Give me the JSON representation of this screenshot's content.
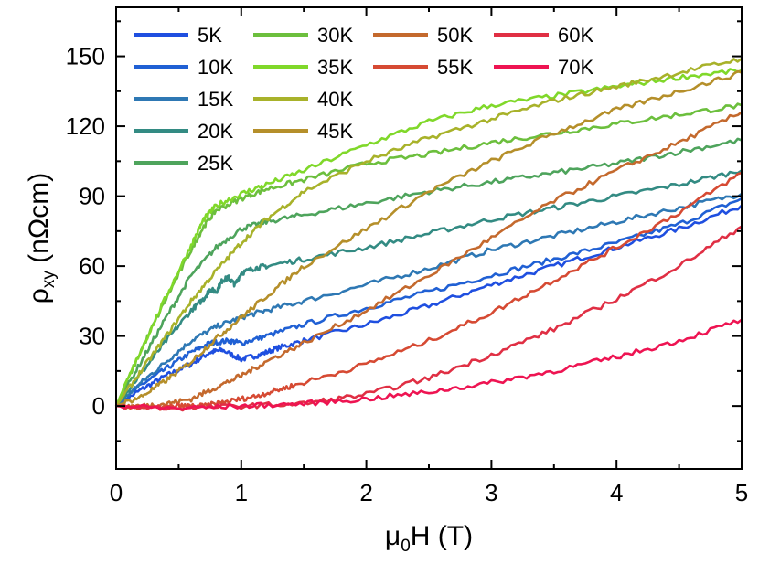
{
  "chart_data": {
    "type": "line",
    "title": "",
    "xlabel": {
      "main": "μ",
      "sub": "0",
      "rest": "H (T)"
    },
    "ylabel": {
      "main": "ρ",
      "sub": "xy",
      "rest": " (nΩcm)"
    },
    "xlim": [
      0,
      5
    ],
    "ylim": [
      -27,
      171
    ],
    "xticks": [
      0,
      1,
      2,
      3,
      4,
      5
    ],
    "yticks": [
      0,
      30,
      60,
      90,
      120,
      150
    ],
    "xtick_labels": [
      "0",
      "1",
      "2",
      "3",
      "4",
      "5"
    ],
    "ytick_labels": [
      "0",
      "30",
      "60",
      "90",
      "120",
      "150"
    ],
    "grid": false,
    "legend_position": "top-left",
    "legend_columns": 4,
    "series": [
      {
        "name": "5K",
        "color": "#1f4fe0",
        "x": [
          0,
          0.2,
          0.4,
          0.6,
          0.75,
          0.85,
          1.0,
          1.15,
          1.3,
          1.5,
          2.0,
          2.5,
          3.0,
          3.5,
          4.0,
          4.5,
          5.0
        ],
        "y": [
          0,
          7,
          13,
          18,
          23,
          24,
          20,
          22,
          25,
          28,
          35,
          43,
          52,
          60,
          68,
          76,
          86
        ]
      },
      {
        "name": "10K",
        "color": "#2060d4",
        "x": [
          0,
          0.2,
          0.4,
          0.6,
          0.75,
          0.9,
          1.0,
          1.2,
          1.5,
          2.0,
          2.5,
          3.0,
          3.5,
          4.0,
          4.5,
          5.0
        ],
        "y": [
          0,
          9,
          16,
          23,
          27,
          28,
          27,
          30,
          35,
          42,
          49,
          56,
          63,
          70,
          78,
          89
        ]
      },
      {
        "name": "15K",
        "color": "#2e78b4",
        "x": [
          0,
          0.2,
          0.4,
          0.6,
          0.8,
          1.0,
          1.2,
          1.5,
          2.0,
          2.5,
          3.0,
          3.5,
          4.0,
          4.5,
          5.0
        ],
        "y": [
          0,
          10,
          19,
          28,
          34,
          38,
          41,
          45,
          52,
          59,
          67,
          73,
          79,
          85,
          91
        ]
      },
      {
        "name": "20K",
        "color": "#338b83",
        "x": [
          0,
          0.2,
          0.4,
          0.6,
          0.7,
          0.75,
          0.8,
          0.85,
          0.9,
          0.95,
          1.0,
          1.1,
          1.2,
          1.5,
          2.0,
          2.5,
          3.0,
          3.5,
          4.0,
          4.5,
          5.0
        ],
        "y": [
          0,
          14,
          28,
          41,
          46,
          50,
          49,
          54,
          55,
          52,
          57,
          59,
          60,
          63,
          68,
          74,
          80,
          85,
          90,
          95,
          101
        ]
      },
      {
        "name": "25K",
        "color": "#4ea45c",
        "x": [
          0,
          0.2,
          0.4,
          0.6,
          0.8,
          1.0,
          1.2,
          1.5,
          2.0,
          2.5,
          3.0,
          3.5,
          4.0,
          4.5,
          5.0
        ],
        "y": [
          0,
          19,
          38,
          56,
          68,
          76,
          79,
          82,
          87,
          92,
          96,
          100,
          104,
          109,
          114
        ]
      },
      {
        "name": "30K",
        "color": "#6cbf3d",
        "x": [
          0,
          0.2,
          0.4,
          0.6,
          0.7,
          0.8,
          1.0,
          1.2,
          1.5,
          2.0,
          2.5,
          3.0,
          3.5,
          4.0,
          4.5,
          5.0
        ],
        "y": [
          0,
          24,
          46,
          67,
          77,
          84,
          89,
          93,
          97,
          104,
          108,
          113,
          117,
          121,
          125,
          129
        ]
      },
      {
        "name": "35K",
        "color": "#80d82a",
        "x": [
          0,
          0.2,
          0.4,
          0.6,
          0.7,
          0.8,
          1.0,
          1.2,
          1.5,
          2.0,
          2.5,
          3.0,
          3.5,
          4.0,
          4.5,
          5.0
        ],
        "y": [
          0,
          24,
          47,
          69,
          80,
          86,
          91,
          95,
          101,
          112,
          122,
          129,
          133,
          137,
          141,
          144
        ]
      },
      {
        "name": "40K",
        "color": "#a8b22a",
        "x": [
          0,
          0.2,
          0.4,
          0.6,
          0.8,
          1.0,
          1.2,
          1.5,
          2.0,
          2.5,
          3.0,
          3.5,
          4.0,
          4.5,
          5.0
        ],
        "y": [
          0,
          15,
          30,
          45,
          58,
          70,
          80,
          92,
          105,
          115,
          123,
          131,
          137,
          143,
          149
        ]
      },
      {
        "name": "45K",
        "color": "#b58f2a",
        "x": [
          0,
          0.2,
          0.4,
          0.6,
          0.8,
          1.0,
          1.2,
          1.5,
          2.0,
          2.5,
          3.0,
          3.5,
          4.0,
          4.5,
          5.0
        ],
        "y": [
          0,
          4,
          11,
          19,
          29,
          38,
          47,
          60,
          76,
          92,
          105,
          117,
          127,
          135,
          143
        ]
      },
      {
        "name": "50K",
        "color": "#c4692d",
        "x": [
          0,
          0.2,
          0.4,
          0.6,
          0.8,
          1.0,
          1.2,
          1.5,
          2.0,
          2.5,
          3.0,
          3.5,
          4.0,
          4.5,
          5.0
        ],
        "y": [
          0,
          0,
          1,
          3,
          8,
          13,
          19,
          27,
          41,
          56,
          72,
          88,
          101,
          113,
          126
        ]
      },
      {
        "name": "55K",
        "color": "#d64a33",
        "x": [
          0,
          0.3,
          0.5,
          0.7,
          0.9,
          1.1,
          1.3,
          1.5,
          2.0,
          2.5,
          3.0,
          3.5,
          4.0,
          4.5,
          5.0
        ],
        "y": [
          0,
          -1,
          0,
          0,
          2,
          4,
          7,
          10,
          18,
          28,
          40,
          54,
          68,
          83,
          100
        ]
      },
      {
        "name": "60K",
        "color": "#e02f44",
        "x": [
          0,
          0.5,
          1.0,
          1.5,
          2.0,
          2.5,
          3.0,
          3.5,
          4.0,
          4.5,
          5.0
        ],
        "y": [
          0,
          -1,
          0,
          1,
          5,
          12,
          22,
          33,
          46,
          60,
          77
        ]
      },
      {
        "name": "70K",
        "color": "#ee1452",
        "x": [
          0,
          0.5,
          1.0,
          1.5,
          2.0,
          2.5,
          3.0,
          3.5,
          4.0,
          4.5,
          5.0
        ],
        "y": [
          0,
          -1,
          0,
          1,
          3,
          6,
          10,
          15,
          21,
          28,
          37
        ]
      }
    ]
  }
}
